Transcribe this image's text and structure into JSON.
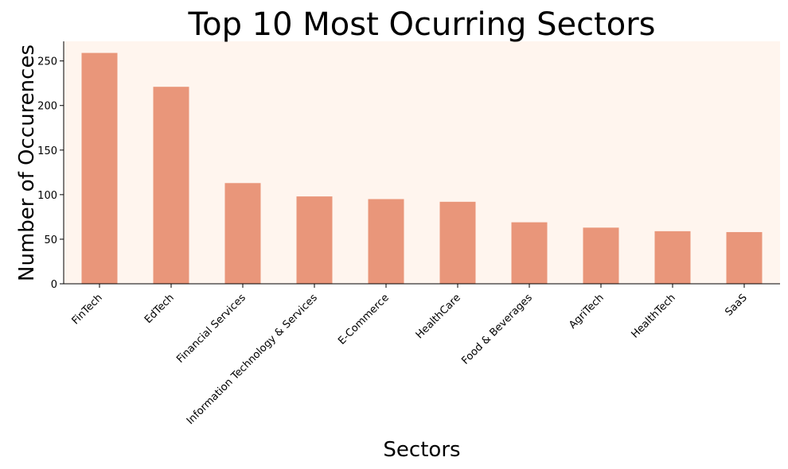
{
  "chart_data": {
    "type": "bar",
    "title": "Top 10 Most Ocurring Sectors",
    "xlabel": "Sectors",
    "ylabel": "Number of Occurences",
    "categories": [
      "FinTech",
      "EdTech",
      "Financial Services",
      "Information Technology & Services",
      "E-Commerce",
      "HealthCare",
      "Food & Beverages",
      "AgriTech",
      "HealthTech",
      "SaaS"
    ],
    "values": [
      259,
      221,
      113,
      98,
      95,
      92,
      69,
      63,
      59,
      58
    ],
    "yticks": [
      0,
      50,
      100,
      150,
      200,
      250
    ],
    "ylim": [
      0,
      272
    ],
    "grid": false,
    "legend": "none",
    "colors": {
      "bar": "#E9967A",
      "plot_background": "#FFF5EE",
      "axis": "#000000"
    }
  }
}
